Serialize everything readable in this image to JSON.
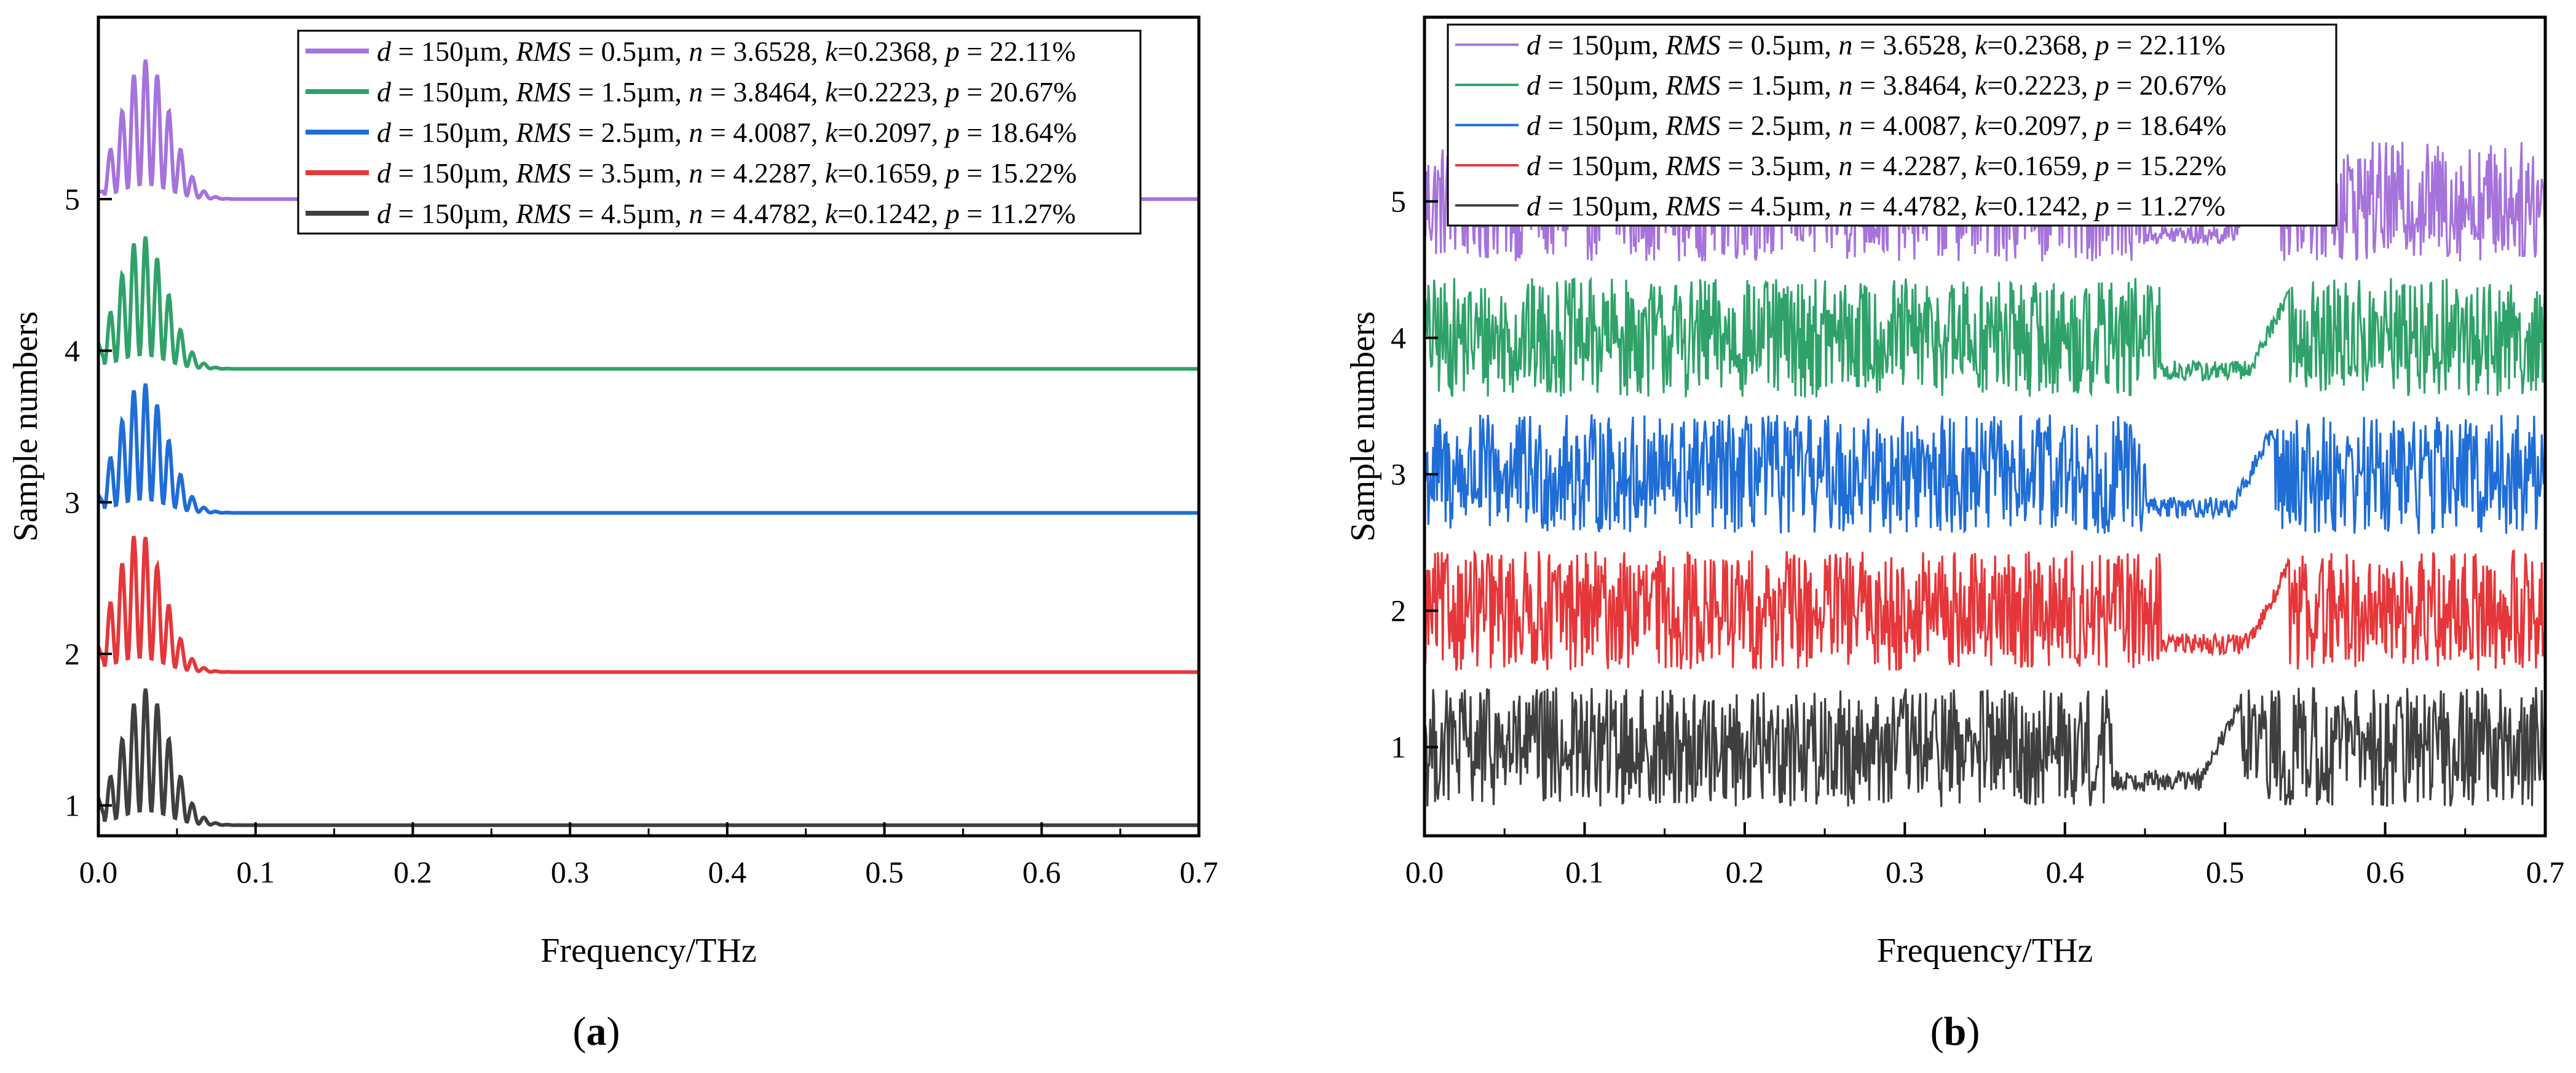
{
  "chart_data": [
    {
      "panel": "a",
      "type": "line",
      "caption": "(a)",
      "caption_letter": "a",
      "xlabel": "Frequency/THz",
      "ylabel": "Sample numbers",
      "xlim": [
        0.0,
        0.7
      ],
      "ylim": [
        0.8,
        6.2
      ],
      "x_ticks": [
        "0.0",
        "0.1",
        "0.2",
        "0.3",
        "0.4",
        "0.5",
        "0.6",
        "0.7"
      ],
      "y_ticks": [
        "1",
        "2",
        "3",
        "4",
        "5"
      ],
      "legend_position": "top-right",
      "series": [
        {
          "name": "d = 150µm, RMS = 0.5µm, n = 3.6528, k=0.2368, p = 22.11%",
          "label": {
            "d": "150µm",
            "rms": "0.5µm",
            "n": "3.6528",
            "k": "0.2368",
            "p": "22.11%"
          },
          "color": "#A672DB",
          "sample": 5,
          "baseline": 5.0,
          "peak_freq": 0.03,
          "peak_height": 0.92,
          "decay_freq": 0.095
        },
        {
          "name": "d = 150µm, RMS = 1.5µm, n = 3.8464, k=0.2223, p = 20.67%",
          "label": {
            "d": "150µm",
            "rms": "1.5µm",
            "n": "3.8464",
            "k": "0.2223",
            "p": "20.67%"
          },
          "color": "#2FA26A",
          "sample": 4,
          "baseline": 3.88,
          "peak_freq": 0.028,
          "peak_height": 0.88,
          "decay_freq": 0.105
        },
        {
          "name": "d = 150µm, RMS = 2.5µm, n = 4.0087, k=0.2097, p = 18.64%",
          "label": {
            "d": "150µm",
            "rms": "2.5µm",
            "n": "4.0087",
            "k": "0.2097",
            "p": "18.64%"
          },
          "color": "#1F6DD6",
          "sample": 3,
          "baseline": 2.93,
          "peak_freq": 0.028,
          "peak_height": 0.86,
          "decay_freq": 0.1
        },
        {
          "name": "d = 150µm, RMS = 3.5µm, n = 4.2287, k=0.1659, p = 15.22%",
          "label": {
            "d": "150µm",
            "rms": "3.5µm",
            "n": "4.2287",
            "k": "0.1659",
            "p": "15.22%"
          },
          "color": "#E5373A",
          "sample": 2,
          "baseline": 1.88,
          "peak_freq": 0.026,
          "peak_height": 0.92,
          "decay_freq": 0.1
        },
        {
          "name": "d = 150µm, RMS = 4.5µm, n = 4.4782, k=0.1242, p = 11.27%",
          "label": {
            "d": "150µm",
            "rms": "4.5µm",
            "n": "4.4782",
            "k": "0.1242",
            "p": "11.27%"
          },
          "color": "#3F3F3F",
          "sample": 1,
          "baseline": 0.87,
          "peak_freq": 0.03,
          "peak_height": 0.9,
          "decay_freq": 0.1
        }
      ]
    },
    {
      "panel": "b",
      "type": "line",
      "caption": "(b)",
      "caption_letter": "b",
      "xlabel": "Frequency/THz",
      "ylabel": "Sample numbers",
      "xlim": [
        0.0,
        0.7
      ],
      "ylim": [
        0.35,
        6.35
      ],
      "x_ticks": [
        "0.0",
        "0.1",
        "0.2",
        "0.3",
        "0.4",
        "0.5",
        "0.6",
        "0.7"
      ],
      "y_ticks": [
        "1",
        "2",
        "3",
        "4",
        "5"
      ],
      "legend_position": "top-left",
      "series": [
        {
          "name": "d = 150µm, RMS = 0.5µm, n = 3.6528, k=0.2368, p = 22.11%",
          "label": {
            "d": "150µm",
            "rms": "0.5µm",
            "n": "3.6528",
            "k": "0.2368",
            "p": "22.11%"
          },
          "color": "#A672DB",
          "sample": 5,
          "center": 5.0,
          "amplitude": 0.44,
          "transition_freq": 0.51
        },
        {
          "name": "d = 150µm, RMS = 1.5µm, n = 3.8464, k=0.2223, p = 20.67%",
          "label": {
            "d": "150µm",
            "rms": "1.5µm",
            "n": "3.8464",
            "k": "0.2223",
            "p": "20.67%"
          },
          "color": "#2FA26A",
          "sample": 4,
          "center": 4.0,
          "amplitude": 0.44,
          "transition_freq": 0.52
        },
        {
          "name": "d = 150µm, RMS = 2.5µm, n = 4.0087, k=0.2097, p = 18.64%",
          "label": {
            "d": "150µm",
            "rms": "2.5µm",
            "n": "4.0087",
            "k": "0.2097",
            "p": "18.64%"
          },
          "color": "#1F6DD6",
          "sample": 3,
          "center": 3.0,
          "amplitude": 0.44,
          "transition_freq": 0.51
        },
        {
          "name": "d = 150µm, RMS = 3.5µm, n = 4.2287, k=0.1659, p = 15.22%",
          "label": {
            "d": "150µm",
            "rms": "3.5µm",
            "n": "4.2287",
            "k": "0.1659",
            "p": "15.22%"
          },
          "color": "#E5373A",
          "sample": 2,
          "center": 2.0,
          "amplitude": 0.44,
          "transition_freq": 0.52
        },
        {
          "name": "d = 150µm, RMS = 4.5µm, n = 4.4782, k=0.1242, p = 11.27%",
          "label": {
            "d": "150µm",
            "rms": "4.5µm",
            "n": "4.4782",
            "k": "0.1242",
            "p": "11.27%"
          },
          "color": "#3F3F3F",
          "sample": 1,
          "center": 1.0,
          "amplitude": 0.44,
          "transition_freq": 0.49
        }
      ]
    }
  ]
}
